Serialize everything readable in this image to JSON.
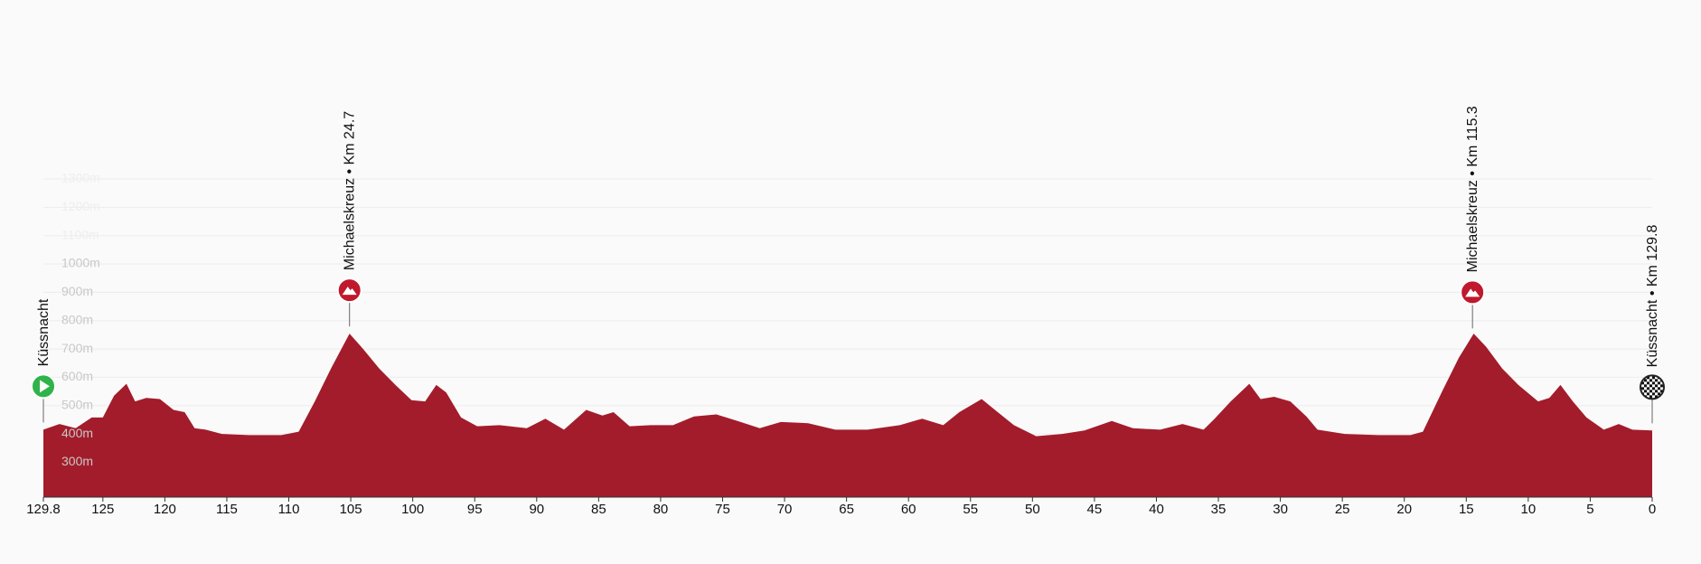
{
  "chart_data": {
    "type": "area",
    "color": "#a31c2b",
    "x": [
      129.8,
      128.5,
      127.2,
      125.9,
      125,
      124.1,
      123.1,
      122.4,
      121.5,
      120.4,
      119.3,
      118.4,
      117.6,
      116.7,
      115.4,
      113.2,
      110.6,
      109.2,
      107.9,
      106.6,
      105.1,
      104,
      102.7,
      101.4,
      100.1,
      99,
      98.1,
      97.3,
      96.1,
      94.8,
      93,
      90.8,
      89.3,
      87.8,
      86,
      84.7,
      83.8,
      82.5,
      80.8,
      79,
      77.3,
      75.5,
      73.8,
      72,
      70.3,
      68.1,
      65.9,
      63.3,
      60.7,
      58.9,
      57.2,
      55.9,
      54.1,
      52.8,
      51.5,
      49.7,
      47.6,
      45.8,
      43.6,
      41.9,
      39.7,
      37.9,
      36.2,
      35.3,
      34,
      32.5,
      31.6,
      30.5,
      29.2,
      27.9,
      27,
      24.8,
      22.1,
      19.5,
      18.5,
      16.9,
      15.6,
      14.4,
      13.4,
      12.1,
      10.8,
      9.2,
      8.3,
      7.4,
      6.4,
      5.3,
      3.9,
      2.7,
      1.6,
      0
    ],
    "values": [
      415,
      435,
      420,
      458,
      458,
      535,
      577,
      515,
      527,
      523,
      485,
      477,
      420,
      415,
      400,
      396,
      396,
      408,
      515,
      631,
      754,
      700,
      631,
      573,
      519,
      515,
      573,
      546,
      458,
      427,
      431,
      420,
      454,
      415,
      485,
      465,
      477,
      427,
      431,
      431,
      462,
      469,
      446,
      420,
      442,
      438,
      415,
      415,
      431,
      454,
      431,
      477,
      523,
      477,
      431,
      392,
      400,
      412,
      446,
      420,
      415,
      435,
      415,
      454,
      515,
      577,
      523,
      531,
      515,
      462,
      415,
      400,
      396,
      396,
      408,
      554,
      669,
      754,
      708,
      631,
      573,
      515,
      527,
      573,
      515,
      458,
      415,
      435,
      415,
      412
    ],
    "xlim": [
      129.8,
      0
    ],
    "xticks": [
      129.8,
      125,
      120,
      115,
      110,
      105,
      100,
      95,
      90,
      85,
      80,
      75,
      70,
      65,
      60,
      55,
      50,
      45,
      40,
      35,
      30,
      25,
      20,
      15,
      10,
      5,
      0
    ],
    "ylim": [
      177,
      1300
    ],
    "yticks": [
      {
        "value": 300,
        "label": "300m"
      },
      {
        "value": 400,
        "label": "400m"
      },
      {
        "value": 500,
        "label": "500m"
      },
      {
        "value": 600,
        "label": "600m"
      },
      {
        "value": 700,
        "label": "700m"
      },
      {
        "value": 800,
        "label": "800m"
      },
      {
        "value": 900,
        "label": "900m"
      },
      {
        "value": 1000,
        "label": "1000m"
      },
      {
        "value": 1100,
        "label": "1100m"
      },
      {
        "value": 1200,
        "label": "1200m"
      },
      {
        "value": 1300,
        "label": "1300m"
      }
    ],
    "grid": true,
    "annotations": [
      {
        "x": 129.8,
        "text": "Küssnacht",
        "icon": "start"
      },
      {
        "x": 105.1,
        "text": "Michaelskreuz • Km 24.7",
        "icon": "climb"
      },
      {
        "x": 14.5,
        "text": "Michaelskreuz • Km 115.3",
        "icon": "climb"
      },
      {
        "x": 0,
        "text": "Küssnacht • Km 129.8",
        "icon": "finish"
      }
    ]
  }
}
